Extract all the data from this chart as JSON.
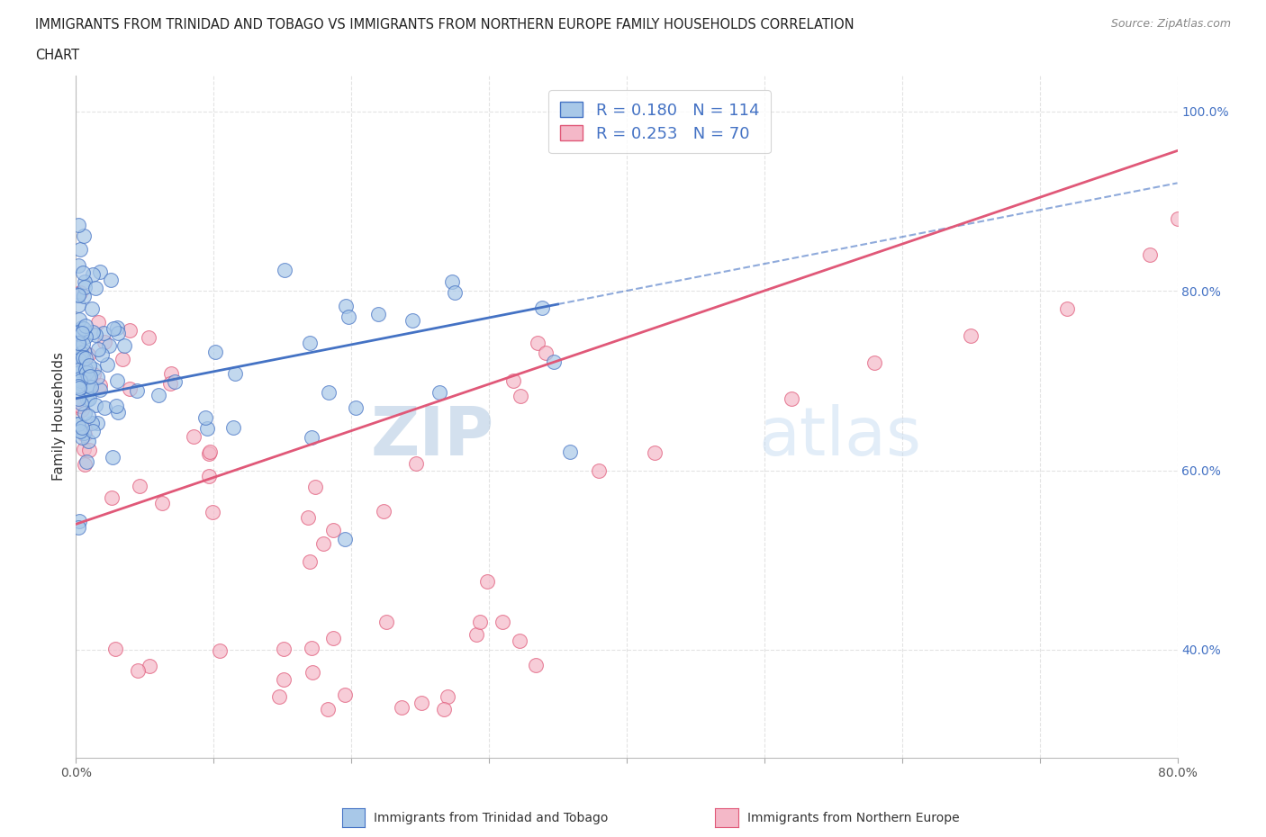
{
  "title_line1": "IMMIGRANTS FROM TRINIDAD AND TOBAGO VS IMMIGRANTS FROM NORTHERN EUROPE FAMILY HOUSEHOLDS CORRELATION",
  "title_line2": "CHART",
  "source_text": "Source: ZipAtlas.com",
  "ylabel": "Family Households",
  "xlabel_blue": "Immigrants from Trinidad and Tobago",
  "xlabel_pink": "Immigrants from Northern Europe",
  "R_blue": 0.18,
  "N_blue": 114,
  "R_pink": 0.253,
  "N_pink": 70,
  "blue_color": "#A8C8E8",
  "blue_edge_color": "#4472C4",
  "pink_color": "#F4B8C8",
  "pink_edge_color": "#E05878",
  "blue_trend_color": "#4472C4",
  "pink_trend_color": "#E05878",
  "legend_text_color": "#4472C4",
  "watermark_color": "#C8DCF0",
  "xlim": [
    0.0,
    0.8
  ],
  "ylim_min": 0.28,
  "ylim_max": 1.04
}
